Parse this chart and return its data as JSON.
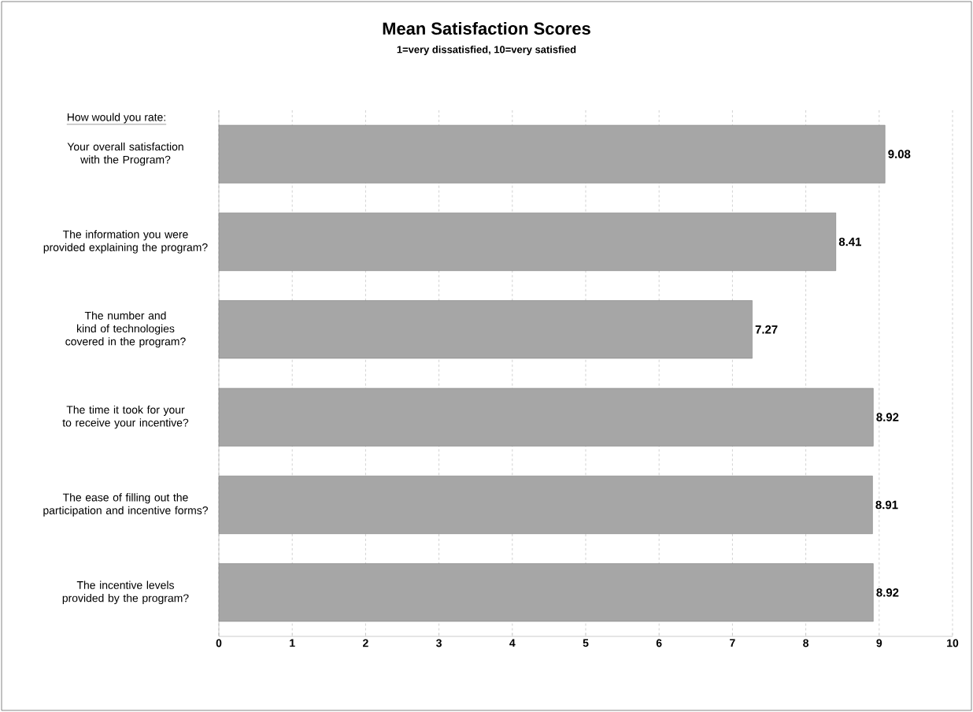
{
  "chart_data": {
    "type": "bar",
    "orientation": "horizontal",
    "title": "Mean Satisfaction Scores",
    "subtitle": "1=very dissatisfied, 10=very satisfied",
    "annotations": [
      "How would you rate:"
    ],
    "categories": [
      "Your overall satisfaction with the Program?",
      "The information you were provided explaining the program?",
      "The number and kind of technologies covered in the program?",
      "The time it took for your to receive your incentive?",
      "The ease of filling out the participation and incentive forms?",
      "The incentive levels provided by the program?"
    ],
    "values": [
      9.08,
      8.41,
      7.27,
      8.92,
      8.91,
      8.92
    ],
    "color": "#a6a6a6",
    "data_labels": true,
    "xlim": [
      0,
      10
    ],
    "xticks": [
      0,
      1,
      2,
      3,
      4,
      5,
      6,
      7,
      8,
      9,
      10
    ],
    "grid": "x"
  }
}
